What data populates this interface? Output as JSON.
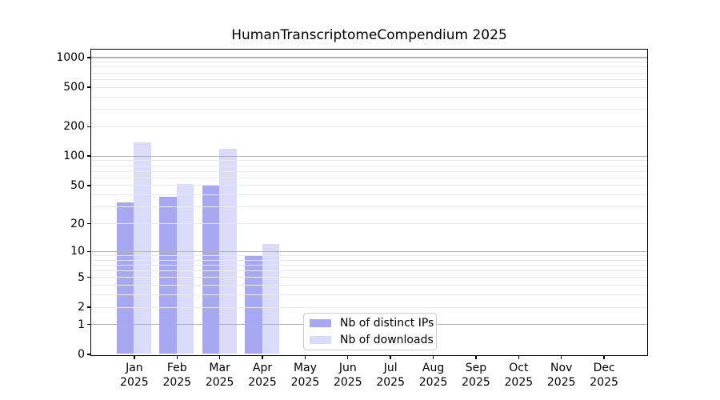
{
  "chart_data": {
    "type": "bar",
    "title": "HumanTranscriptomeCompendium 2025",
    "x": [
      "Jan",
      "Feb",
      "Mar",
      "Apr",
      "May",
      "Jun",
      "Jul",
      "Aug",
      "Sep",
      "Oct",
      "Nov",
      "Dec"
    ],
    "x_year": "2025",
    "series": [
      {
        "name": "Nb of distinct IPs",
        "key": "distinct-ips",
        "color": "#a7a7f2",
        "values": [
          33,
          38,
          50,
          9,
          0,
          0,
          0,
          0,
          0,
          0,
          0,
          0
        ]
      },
      {
        "name": "Nb of downloads",
        "key": "downloads",
        "color": "#dadaf9",
        "values": [
          137,
          51,
          118,
          12,
          0,
          0,
          0,
          0,
          0,
          0,
          0,
          0
        ]
      }
    ],
    "y_axis": {
      "ticks": [
        0,
        1,
        2,
        5,
        10,
        20,
        50,
        100,
        200,
        500,
        1000
      ],
      "ylim": [
        0,
        1000
      ],
      "scale": "symlog (log10(1+y))"
    },
    "xlabel": "",
    "ylabel": "",
    "grid": {
      "major_color": "#b2b2b2",
      "minor_color": "#e9e9e9",
      "grid_on": true
    },
    "legend": {
      "position": "lower center"
    }
  }
}
